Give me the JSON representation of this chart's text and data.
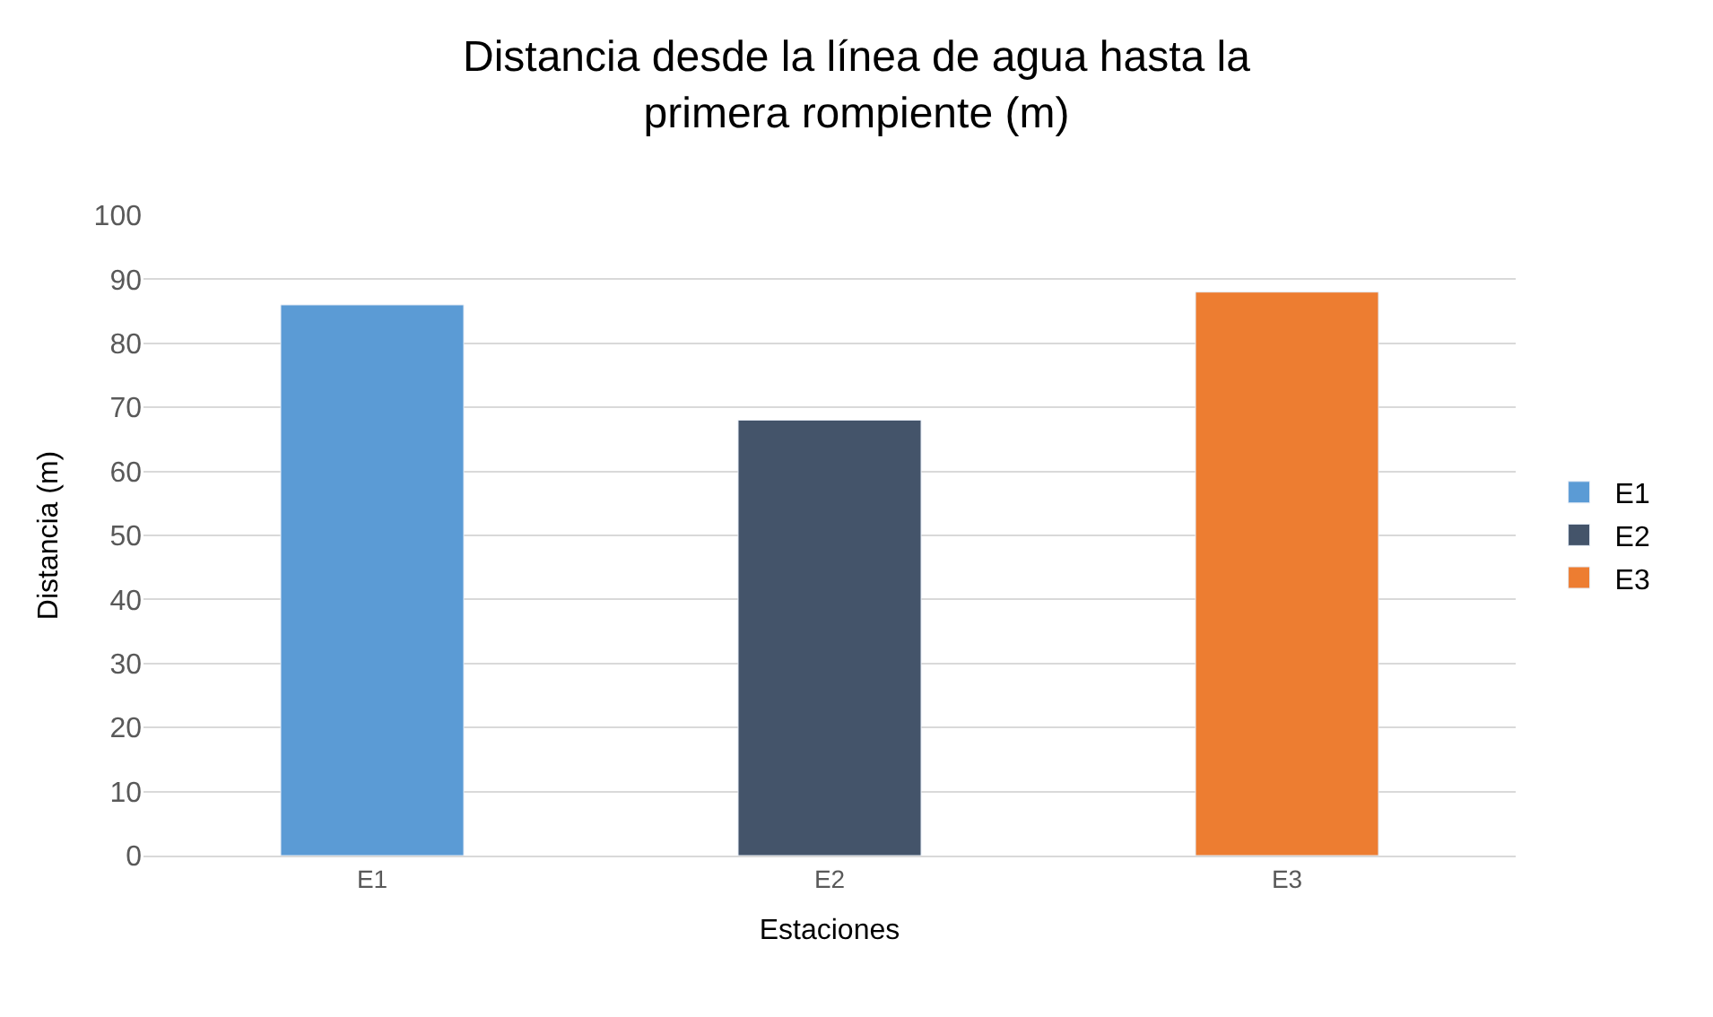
{
  "chart_data": {
    "type": "bar",
    "title": "Distancia desde la línea de agua hasta la primera rompiente (m)",
    "xlabel": "Estaciones",
    "ylabel": "Distancia (m)",
    "categories": [
      "E1",
      "E2",
      "E3"
    ],
    "series": [
      {
        "name": "E1",
        "color": "#5b9bd5",
        "values": [
          86,
          null,
          null
        ]
      },
      {
        "name": "E2",
        "color": "#44546a",
        "values": [
          null,
          68,
          null
        ]
      },
      {
        "name": "E3",
        "color": "#ed7d31",
        "values": [
          null,
          null,
          88
        ]
      }
    ],
    "ylim": [
      0,
      100
    ],
    "yticks": [
      0,
      10,
      20,
      30,
      40,
      50,
      60,
      70,
      80,
      90,
      100
    ],
    "grid": "y",
    "legend": "right"
  }
}
